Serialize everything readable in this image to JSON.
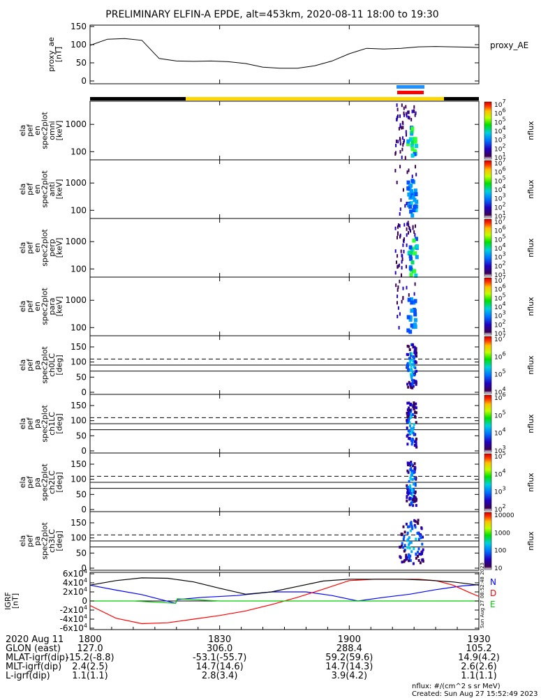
{
  "title": "PRELIMINARY ELFIN-A EPDE, alt=453km, 2020-08-11 18:00 to 19:30",
  "ae_panel": {
    "ylabel": [
      "proxy_ae",
      "[nT]"
    ],
    "series_label": "proxy_AE",
    "yticks": [
      "0",
      "50",
      "100",
      "150"
    ]
  },
  "spec_panels": [
    {
      "ylabel": [
        "ela",
        "pef",
        "en",
        "spec2plot",
        "omni",
        "[keV]"
      ],
      "yticks": [
        "100",
        "1000"
      ],
      "cbar_label": "nflux",
      "cbar_ticks": [
        "10^1",
        "10^2",
        "10^3",
        "10^4",
        "10^5",
        "10^6",
        "10^7"
      ]
    },
    {
      "ylabel": [
        "ela",
        "pef",
        "en",
        "spec2plot",
        "anti",
        "[keV]"
      ],
      "yticks": [
        "100",
        "1000"
      ],
      "cbar_label": "nflux",
      "cbar_ticks": [
        "10^1",
        "10^2",
        "10^3",
        "10^4",
        "10^5",
        "10^6",
        "10^7"
      ]
    },
    {
      "ylabel": [
        "ela",
        "pef",
        "en",
        "spec2plot",
        "perp",
        "[keV]"
      ],
      "yticks": [
        "100",
        "1000"
      ],
      "cbar_label": "nflux",
      "cbar_ticks": [
        "10^1",
        "10^2",
        "10^3",
        "10^4",
        "10^5",
        "10^6",
        "10^7"
      ]
    },
    {
      "ylabel": [
        "ela",
        "pef",
        "en",
        "spec2plot",
        "para",
        "[keV]"
      ],
      "yticks": [
        "100",
        "1000"
      ],
      "cbar_label": "nflux",
      "cbar_ticks": [
        "10^1",
        "10^2",
        "10^3",
        "10^4",
        "10^5",
        "10^6",
        "10^7"
      ]
    }
  ],
  "pa_panels": [
    {
      "ylabel": [
        "ela",
        "pef",
        "pa",
        "spec2plot",
        "ch0LC",
        "[deg]"
      ],
      "yticks": [
        "0",
        "50",
        "100",
        "150"
      ],
      "cbar_label": "nflux",
      "cbar_ticks": [
        "10^4",
        "10^5",
        "10^6",
        "10^7"
      ]
    },
    {
      "ylabel": [
        "ela",
        "pef",
        "pa",
        "spec2plot",
        "ch1LC",
        "[deg]"
      ],
      "yticks": [
        "0",
        "50",
        "100",
        "150"
      ],
      "cbar_label": "nflux",
      "cbar_ticks": [
        "10^3",
        "10^4",
        "10^5",
        "10^6"
      ]
    },
    {
      "ylabel": [
        "ela",
        "pef",
        "pa",
        "spec2plot",
        "ch2LC",
        "[deg]"
      ],
      "yticks": [
        "0",
        "50",
        "100",
        "150"
      ],
      "cbar_label": "nflux",
      "cbar_ticks": [
        "10^2",
        "10^3",
        "10^4",
        "10^5"
      ]
    },
    {
      "ylabel": [
        "ela",
        "pef",
        "pa",
        "spec2plot",
        "ch3LC",
        "[deg]"
      ],
      "yticks": [
        "0",
        "50",
        "100",
        "150"
      ],
      "cbar_label": "nflux",
      "cbar_ticks": [
        "10",
        "100",
        "1000",
        "10000"
      ]
    }
  ],
  "igrf_panel": {
    "ylabel": [
      "IGRF",
      "[nT]"
    ],
    "yticks": [
      "-6x10^4",
      "-4x10^4",
      "-2x10^4",
      "0",
      "2x10^4",
      "4x10^4",
      "6x10^4"
    ],
    "legend": [
      {
        "label": "N",
        "color": "#0000ff"
      },
      {
        "label": "D",
        "color": "#ff0000"
      },
      {
        "label": "E",
        "color": "#00cc00"
      }
    ],
    "stamp": "Sun Aug 27 08:52:48 2023"
  },
  "x_axis": {
    "tick_labels": [
      "1800",
      "1830",
      "1900",
      "1930"
    ],
    "rows": [
      {
        "label": "2020 Aug 11",
        "values": [
          "1800",
          "1830",
          "1900",
          "1930"
        ]
      },
      {
        "label": "GLON (east)",
        "values": [
          "127.0",
          "306.0",
          "288.4",
          "105.2"
        ]
      },
      {
        "label": "MLAT-igrf(dip)",
        "values": [
          "-15.2(-8.8)",
          "-53.1(-55.7)",
          "59.2(59.6)",
          "14.9(4.2)"
        ]
      },
      {
        "label": "MLT-igrf(dip)",
        "values": [
          "2.4(2.5)",
          "14.7(14.6)",
          "14.7(14.3)",
          "2.6(2.6)"
        ]
      },
      {
        "label": "L-igrf(dip)",
        "values": [
          "1.1(1.1)",
          "2.8(3.4)",
          "3.9(4.2)",
          "1.1(1.1)"
        ]
      }
    ]
  },
  "footer": {
    "units": "nflux: #/(cm^2 s sr MeV)",
    "created": "Created: Sun Aug 27 15:52:49 2023"
  },
  "chart_data": {
    "type": "line",
    "title": "PRELIMINARY ELFIN-A EPDE, alt=453km, 2020-08-11 18:00 to 19:30",
    "x_range_minutes": [
      0,
      90
    ],
    "proxy_ae": {
      "x": [
        0,
        4,
        8,
        12,
        16,
        20,
        24,
        28,
        32,
        36,
        40,
        44,
        48,
        52,
        56,
        60,
        64,
        68,
        72,
        76,
        80,
        84,
        88,
        90
      ],
      "y": [
        98,
        115,
        117,
        112,
        62,
        55,
        54,
        55,
        53,
        48,
        38,
        35,
        35,
        42,
        55,
        75,
        90,
        88,
        90,
        94,
        95,
        94,
        93,
        92
      ],
      "ylim": [
        0,
        150
      ]
    },
    "igrf": {
      "ylim": [
        -60000,
        60000
      ],
      "series": [
        {
          "name": "N",
          "color": "#0000ff",
          "x": [
            0,
            6,
            12,
            19.8,
            20.2,
            26,
            34,
            42,
            50,
            56,
            62,
            68,
            74,
            80,
            86,
            90
          ],
          "y": [
            35000,
            24000,
            14000,
            -5000,
            3000,
            8000,
            12000,
            20000,
            20000,
            12000,
            0,
            8000,
            15000,
            25000,
            33000,
            36000
          ]
        },
        {
          "name": "D",
          "color": "#ff0000",
          "x": [
            0,
            6,
            12,
            18,
            24,
            30,
            36,
            42,
            48,
            54,
            60,
            66,
            72,
            76,
            80,
            84,
            88,
            90
          ],
          "y": [
            -10000,
            -38000,
            -50000,
            -48000,
            -40000,
            -32000,
            -22000,
            -8000,
            8000,
            26000,
            45000,
            48000,
            48000,
            48000,
            45000,
            35000,
            18000,
            10000
          ]
        },
        {
          "name": "E",
          "color": "#00cc00",
          "x": [
            0,
            10,
            19.8,
            20.2,
            30,
            40,
            50,
            60,
            70,
            80,
            90
          ],
          "y": [
            0,
            0,
            -5000,
            5000,
            0,
            0,
            0,
            0,
            0,
            0,
            0
          ]
        },
        {
          "name": "",
          "color": "#000000",
          "x": [
            0,
            6,
            12,
            18,
            24,
            30,
            36,
            42,
            48,
            54,
            60,
            66,
            72,
            78,
            84,
            90
          ],
          "y": [
            35000,
            45000,
            51000,
            50000,
            42000,
            28000,
            15000,
            20000,
            32000,
            44000,
            48000,
            48000,
            48000,
            46000,
            42000,
            35000
          ]
        }
      ]
    },
    "science_zone_minutes": [
      70.5,
      76
    ],
    "pa_reference_lines_deg": [
      {
        "deg": 70,
        "style": "solid"
      },
      {
        "deg": 90,
        "style": "solid"
      },
      {
        "deg": 110,
        "style": "dashed"
      }
    ]
  }
}
